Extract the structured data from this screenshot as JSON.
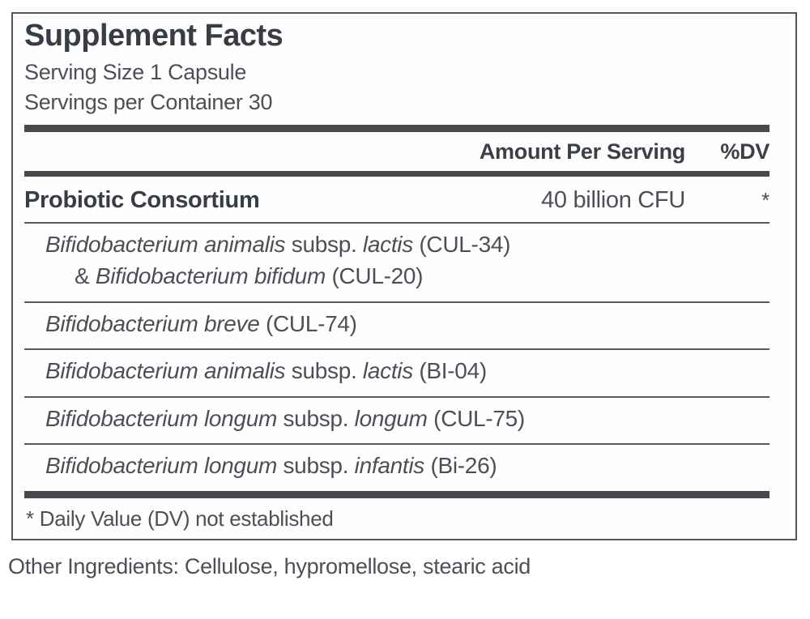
{
  "colors": {
    "ink": "#383c44",
    "body_text": "#4b5058",
    "bar": "#46494e",
    "rule": "#595d63",
    "border": "#54575c"
  },
  "panel": {
    "title": "Supplement Facts",
    "serving_size": "Serving Size 1 Capsule",
    "servings_per_container": "Servings per Container 30",
    "columns": {
      "amount": "Amount Per Serving",
      "dv": "%DV"
    },
    "consortium": {
      "name": "Probiotic Consortium",
      "amount": "40 billion CFU",
      "dv": "*"
    },
    "ingredients": [
      {
        "lines": [
          [
            {
              "t": "Bifidobacterium animalis",
              "i": true
            },
            {
              "t": " subsp. ",
              "i": false
            },
            {
              "t": "lactis",
              "i": true
            },
            {
              "t": " (CUL-34)",
              "i": false
            }
          ],
          [
            {
              "t": "& ",
              "i": false
            },
            {
              "t": "Bifidobacterium bifidum",
              "i": true
            },
            {
              "t": " (CUL-20)",
              "i": false
            }
          ]
        ]
      },
      {
        "lines": [
          [
            {
              "t": "Bifidobacterium breve",
              "i": true
            },
            {
              "t": " (CUL-74)",
              "i": false
            }
          ]
        ]
      },
      {
        "lines": [
          [
            {
              "t": "Bifidobacterium animalis",
              "i": true
            },
            {
              "t": " subsp. ",
              "i": false
            },
            {
              "t": "lactis",
              "i": true
            },
            {
              "t": " (BI-04)",
              "i": false
            }
          ]
        ]
      },
      {
        "lines": [
          [
            {
              "t": "Bifidobacterium longum",
              "i": true
            },
            {
              "t": " subsp. ",
              "i": false
            },
            {
              "t": "longum",
              "i": true
            },
            {
              "t": " (CUL-75)",
              "i": false
            }
          ]
        ]
      },
      {
        "lines": [
          [
            {
              "t": "Bifidobacterium longum",
              "i": true
            },
            {
              "t": " subsp. ",
              "i": false
            },
            {
              "t": "infantis",
              "i": true
            },
            {
              "t": " (Bi-26)",
              "i": false
            }
          ]
        ]
      }
    ],
    "footnote": "* Daily Value (DV) not established"
  },
  "other_ingredients": "Other Ingredients: Cellulose, hypromellose, stearic acid"
}
